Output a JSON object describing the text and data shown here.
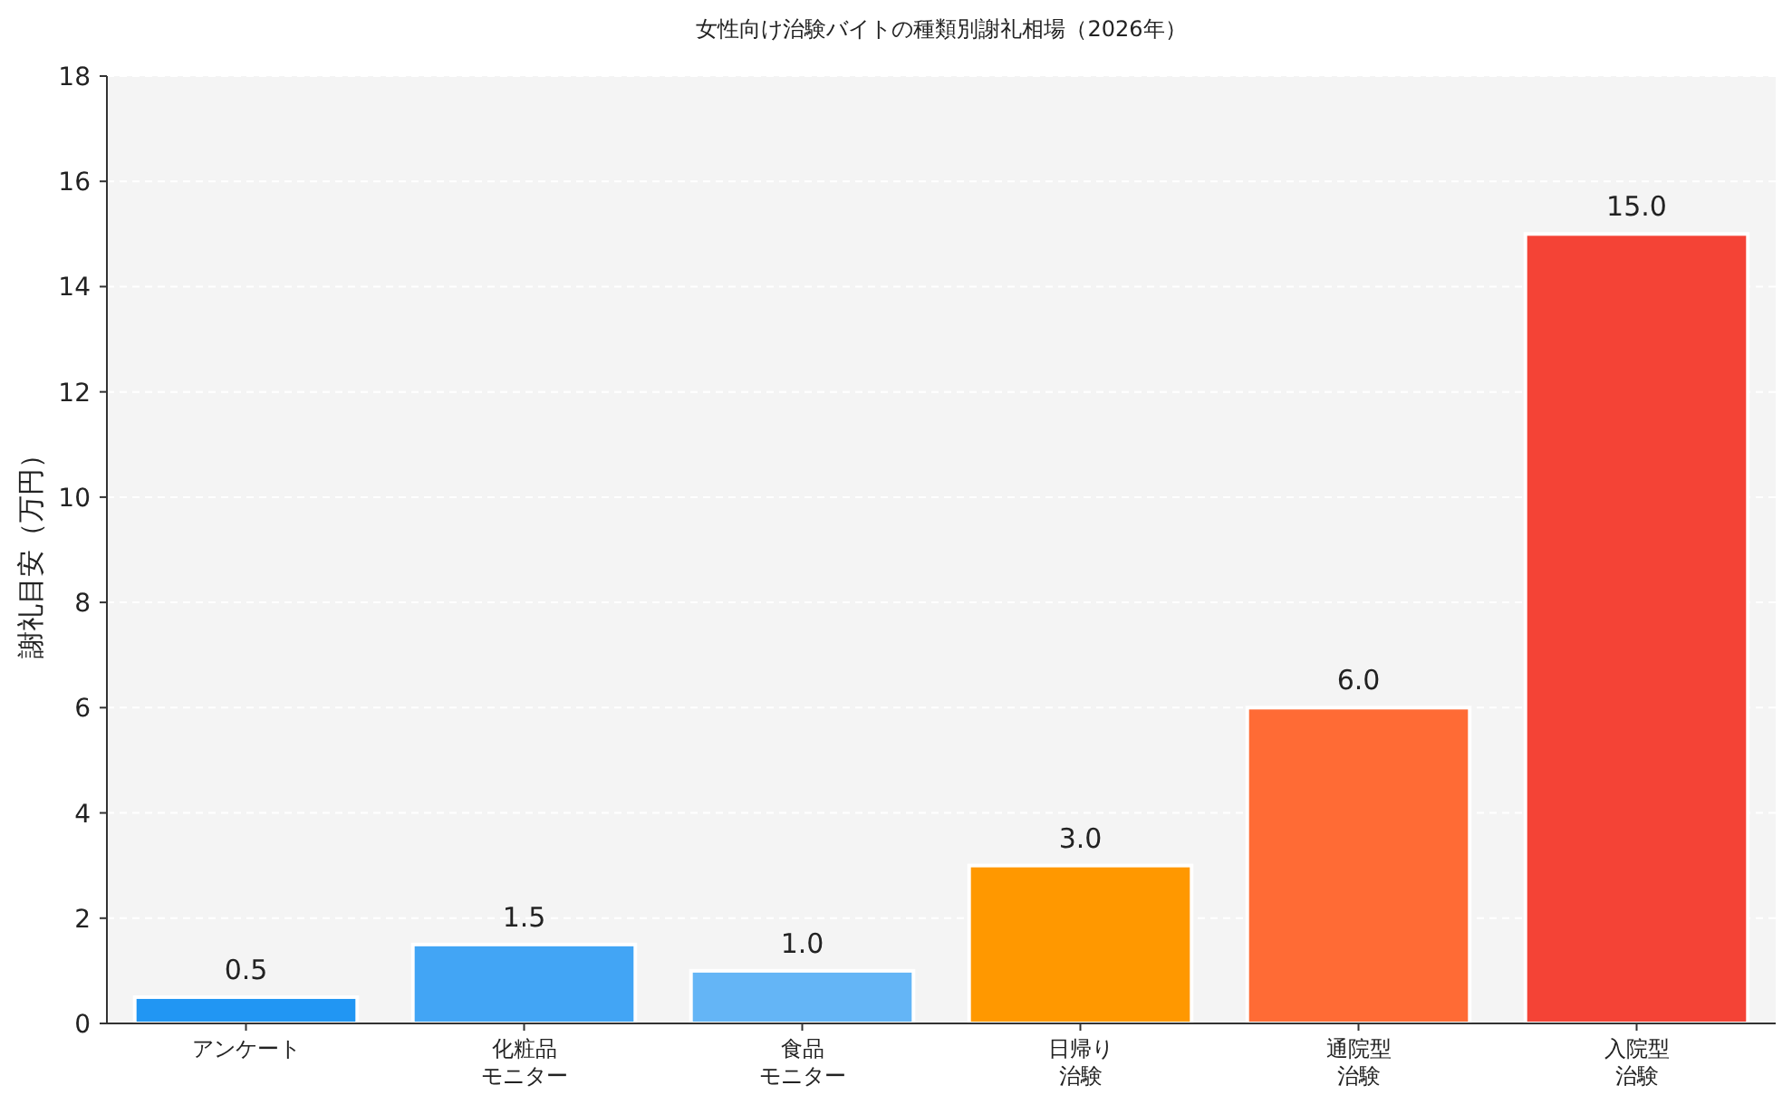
{
  "chart_data": {
    "type": "bar",
    "title": "女性向け治験バイトの種類別謝礼相場（2026年）",
    "ylabel": "謝礼目安（万円）",
    "categories": [
      "アンケート",
      "化粧品モニター",
      "食品モニター",
      "日帰り治験",
      "通院型治験",
      "入院型治験"
    ],
    "values": [
      0.5,
      1.5,
      1.0,
      3.0,
      6.0,
      15.0
    ],
    "colors": [
      "#2196f3",
      "#42a5f5",
      "#64b5f6",
      "#ff9800",
      "#ff6b35",
      "#f44336"
    ],
    "value_labels": [
      "0.5",
      "1.5",
      "1.0",
      "3.0",
      "6.0",
      "15.0"
    ],
    "ylim": [
      0,
      18
    ],
    "yticks": [
      0,
      2,
      4,
      6,
      8,
      10,
      12,
      14,
      16,
      18
    ],
    "grid": "y"
  }
}
